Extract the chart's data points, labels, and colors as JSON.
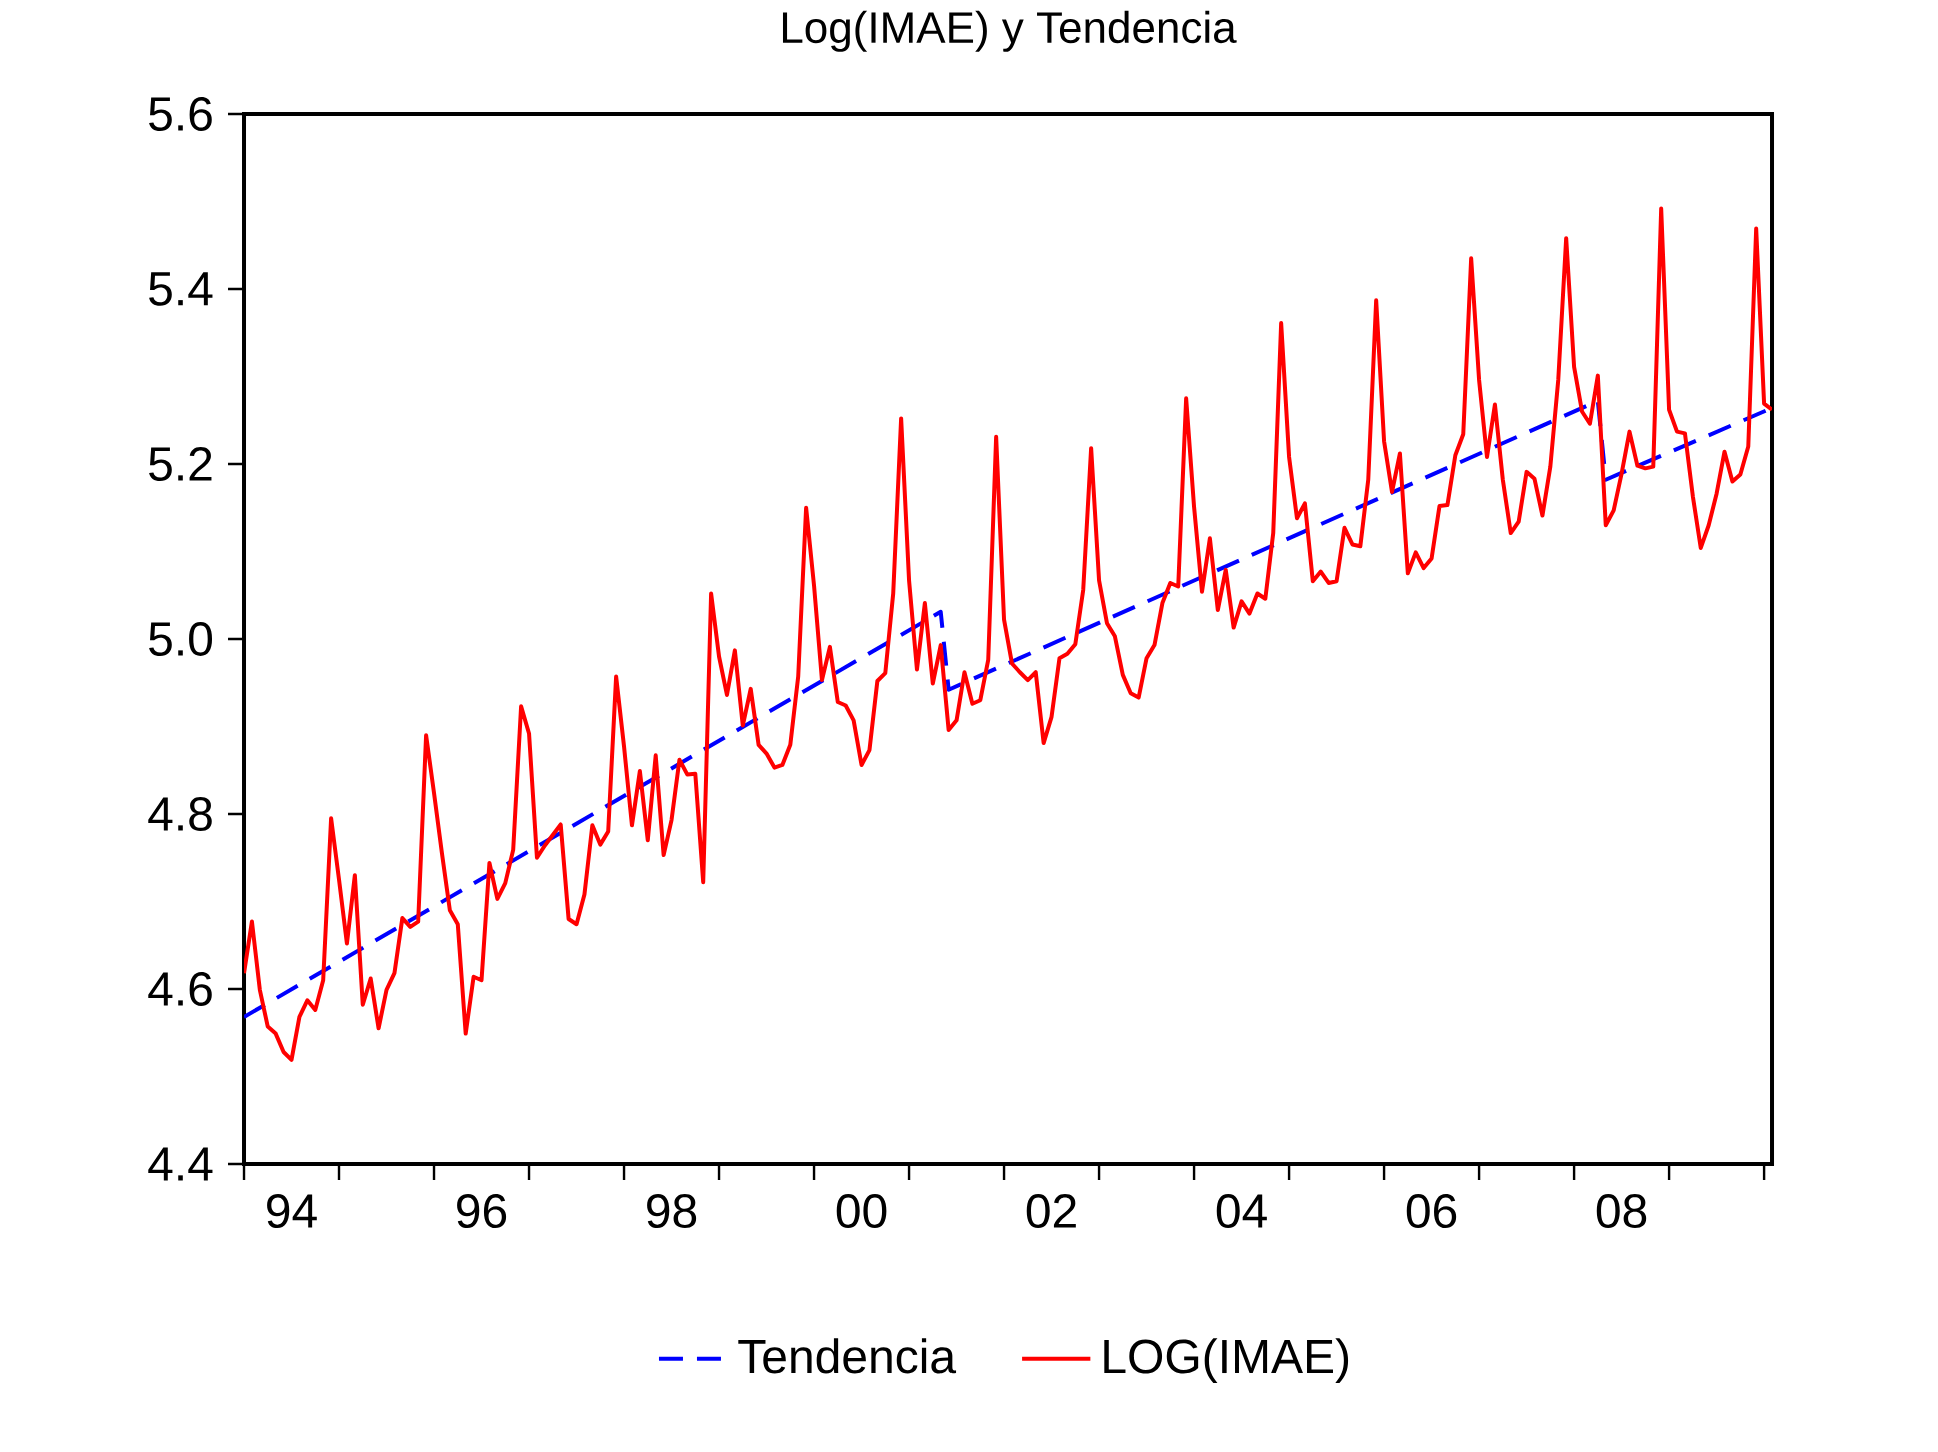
{
  "chart_data": {
    "type": "line",
    "title": "Log(IMAE) y Tendencia",
    "legend": "bottom",
    "xlim": [
      "1994-01",
      "2010-02"
    ],
    "xticks": [
      {
        "value": "1994-07-01",
        "label": "94"
      },
      {
        "value": "1996-07-01",
        "label": "96"
      },
      {
        "value": "1998-07-01",
        "label": "98"
      },
      {
        "value": "2000-07-01",
        "label": "00"
      },
      {
        "value": "2002-07-01",
        "label": "02"
      },
      {
        "value": "2004-07-01",
        "label": "04"
      },
      {
        "value": "2006-07-01",
        "label": "06"
      },
      {
        "value": "2008-07-01",
        "label": "08"
      },
      {
        "value": "1994-01",
        "label": null
      },
      {
        "value": "1995-01",
        "label": null
      },
      {
        "value": "1996-01",
        "label": null
      },
      {
        "value": "1997-01",
        "label": null
      },
      {
        "value": "1998-01",
        "label": null
      },
      {
        "value": "1999-01",
        "label": null
      },
      {
        "value": "2000-01",
        "label": null
      },
      {
        "value": "2001-01",
        "label": null
      },
      {
        "value": "2002-01",
        "label": null
      },
      {
        "value": "2003-01",
        "label": null
      },
      {
        "value": "2004-01",
        "label": null
      },
      {
        "value": "2005-01",
        "label": null
      },
      {
        "value": "2006-01",
        "label": null
      },
      {
        "value": "2007-01",
        "label": null
      },
      {
        "value": "2008-01",
        "label": null
      },
      {
        "value": "2009-01",
        "label": null
      },
      {
        "value": "2010-01",
        "label": null
      }
    ],
    "ylim": [
      4.4,
      5.6
    ],
    "yticks": [
      4.4,
      4.6,
      4.8,
      {
        "value": 5.0,
        "label": "5.0"
      },
      5.2,
      5.4,
      5.6
    ],
    "series": [
      {
        "name": "Tendencia",
        "color": "#0000ff",
        "line_style": "dashed",
        "x": [
          "1994-01",
          "2001-05",
          "2001-06",
          "2008-04",
          "2008-05",
          "2010-02"
        ],
        "values": [
          4.568,
          5.031,
          4.942,
          5.272,
          5.182,
          5.264
        ]
      },
      {
        "name": "LOG(IMAE)",
        "color": "#ff0000",
        "line_style": "solid",
        "x": [
          "1994-01",
          "1994-02",
          "1994-03",
          "1994-04",
          "1994-05",
          "1994-06",
          "1994-07",
          "1994-08",
          "1994-09",
          "1994-10",
          "1994-11",
          "1994-12",
          "1995-01",
          "1995-02",
          "1995-03",
          "1995-04",
          "1995-05",
          "1995-06",
          "1995-07",
          "1995-08",
          "1995-09",
          "1995-10",
          "1995-11",
          "1995-12",
          "1996-01",
          "1996-02",
          "1996-03",
          "1996-04",
          "1996-05",
          "1996-06",
          "1996-07",
          "1996-08",
          "1996-09",
          "1996-10",
          "1996-11",
          "1996-12",
          "1997-01",
          "1997-02",
          "1997-03",
          "1997-04",
          "1997-05",
          "1997-06",
          "1997-07",
          "1997-08",
          "1997-09",
          "1997-10",
          "1997-11",
          "1997-12",
          "1998-01",
          "1998-02",
          "1998-03",
          "1998-04",
          "1998-05",
          "1998-06",
          "1998-07",
          "1998-08",
          "1998-09",
          "1998-10",
          "1998-11",
          "1998-12",
          "1999-01",
          "1999-02",
          "1999-03",
          "1999-04",
          "1999-05",
          "1999-06",
          "1999-07",
          "1999-08",
          "1999-09",
          "1999-10",
          "1999-11",
          "1999-12",
          "2000-01",
          "2000-02",
          "2000-03",
          "2000-04",
          "2000-05",
          "2000-06",
          "2000-07",
          "2000-08",
          "2000-09",
          "2000-10",
          "2000-11",
          "2000-12",
          "2001-01",
          "2001-02",
          "2001-03",
          "2001-04",
          "2001-05",
          "2001-06",
          "2001-07",
          "2001-08",
          "2001-09",
          "2001-10",
          "2001-11",
          "2001-12",
          "2002-01",
          "2002-02",
          "2002-03",
          "2002-04",
          "2002-05",
          "2002-06",
          "2002-07",
          "2002-08",
          "2002-09",
          "2002-10",
          "2002-11",
          "2002-12",
          "2003-01",
          "2003-02",
          "2003-03",
          "2003-04",
          "2003-05",
          "2003-06",
          "2003-07",
          "2003-08",
          "2003-09",
          "2003-10",
          "2003-11",
          "2003-12",
          "2004-01",
          "2004-02",
          "2004-03",
          "2004-04",
          "2004-05",
          "2004-06",
          "2004-07",
          "2004-08",
          "2004-09",
          "2004-10",
          "2004-11",
          "2004-12",
          "2005-01",
          "2005-02",
          "2005-03",
          "2005-04",
          "2005-05",
          "2005-06",
          "2005-07",
          "2005-08",
          "2005-09",
          "2005-10",
          "2005-11",
          "2005-12",
          "2006-01",
          "2006-02",
          "2006-03",
          "2006-04",
          "2006-05",
          "2006-06",
          "2006-07",
          "2006-08",
          "2006-09",
          "2006-10",
          "2006-11",
          "2006-12",
          "2007-01",
          "2007-02",
          "2007-03",
          "2007-04",
          "2007-05",
          "2007-06",
          "2007-07",
          "2007-08",
          "2007-09",
          "2007-10",
          "2007-11",
          "2007-12",
          "2008-01",
          "2008-02",
          "2008-03",
          "2008-04",
          "2008-05",
          "2008-06",
          "2008-07",
          "2008-08",
          "2008-09",
          "2008-10",
          "2008-11",
          "2008-12",
          "2009-01",
          "2009-02",
          "2009-03",
          "2009-04",
          "2009-05",
          "2009-06",
          "2009-07",
          "2009-08",
          "2009-09",
          "2009-10",
          "2009-11",
          "2009-12",
          "2010-01",
          "2010-02"
        ],
        "values": [
          4.618,
          4.677,
          4.599,
          4.557,
          4.549,
          4.528,
          4.519,
          4.568,
          4.587,
          4.576,
          4.61,
          4.795,
          4.725,
          4.652,
          4.73,
          4.582,
          4.612,
          4.555,
          4.599,
          4.618,
          4.681,
          4.671,
          4.677,
          4.89,
          4.824,
          4.755,
          4.69,
          4.674,
          4.549,
          4.614,
          4.61,
          4.744,
          4.703,
          4.721,
          4.759,
          4.923,
          4.892,
          4.75,
          4.764,
          4.776,
          4.788,
          4.68,
          4.674,
          4.708,
          4.787,
          4.765,
          4.78,
          4.957,
          4.877,
          4.787,
          4.849,
          4.77,
          4.867,
          4.753,
          4.793,
          4.862,
          4.845,
          4.846,
          4.722,
          5.052,
          4.98,
          4.936,
          4.987,
          4.901,
          4.943,
          4.879,
          4.869,
          4.853,
          4.856,
          4.879,
          4.957,
          5.15,
          5.061,
          4.953,
          4.991,
          4.928,
          4.924,
          4.907,
          4.856,
          4.873,
          4.952,
          4.961,
          5.052,
          5.252,
          5.067,
          4.965,
          5.041,
          4.949,
          4.993,
          4.896,
          4.907,
          4.962,
          4.926,
          4.93,
          4.976,
          5.231,
          5.022,
          4.972,
          4.962,
          4.953,
          4.962,
          4.881,
          4.911,
          4.978,
          4.983,
          4.994,
          5.056,
          5.218,
          5.067,
          5.018,
          5.003,
          4.959,
          4.938,
          4.933,
          4.978,
          4.993,
          5.041,
          5.064,
          5.06,
          5.275,
          5.151,
          5.054,
          5.115,
          5.033,
          5.079,
          5.013,
          5.043,
          5.029,
          5.052,
          5.046,
          5.121,
          5.361,
          5.208,
          5.138,
          5.155,
          5.066,
          5.077,
          5.064,
          5.066,
          5.127,
          5.108,
          5.106,
          5.182,
          5.387,
          5.226,
          5.168,
          5.212,
          5.075,
          5.099,
          5.081,
          5.092,
          5.152,
          5.153,
          5.21,
          5.234,
          5.435,
          5.296,
          5.208,
          5.268,
          5.182,
          5.121,
          5.134,
          5.191,
          5.183,
          5.141,
          5.197,
          5.296,
          5.458,
          5.311,
          5.26,
          5.246,
          5.301,
          5.13,
          5.147,
          5.189,
          5.237,
          5.198,
          5.195,
          5.197,
          5.492,
          5.262,
          5.237,
          5.235,
          5.163,
          5.104,
          5.13,
          5.166,
          5.214,
          5.18,
          5.188,
          5.22,
          5.469,
          5.269,
          5.262
        ]
      }
    ]
  }
}
